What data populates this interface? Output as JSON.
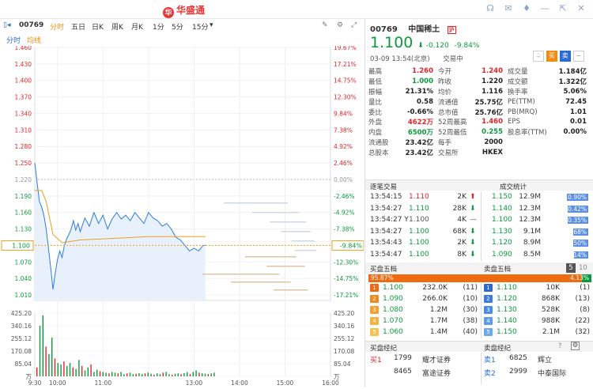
{
  "app": {
    "logo": "华盛通",
    "logo_mark": "华"
  },
  "left": {
    "symbol": "00769",
    "tabs": [
      "分时",
      "五日",
      "日K",
      "周K",
      "月K",
      "1分",
      "5分",
      "15分"
    ],
    "sub_tabs": [
      "分时",
      "均线"
    ]
  },
  "chart_data": {
    "type": "line",
    "title": "",
    "prev_close": 1.22,
    "y_left_ticks": [
      "1.460",
      "1.430",
      "1.400",
      "1.370",
      "1.340",
      "1.310",
      "1.280",
      "1.250",
      "1.220",
      "1.190",
      "1.160",
      "1.130",
      "1.100",
      "1.070",
      "1.040",
      "1.010"
    ],
    "y_right_ticks": [
      "19.67%",
      "17.21%",
      "14.75%",
      "12.30%",
      "9.84%",
      "7.38%",
      "4.92%",
      "2.46%",
      "0.00%",
      "-2.46%",
      "-4.92%",
      "-7.38%",
      "-9.84%",
      "-12.30%",
      "-14.75%",
      "-17.21%"
    ],
    "ylim": [
      1.0,
      1.46
    ],
    "current_label": "1.100",
    "current_pct": "-9.84%",
    "x_ticks": [
      "9:30",
      "10:00",
      "11:00",
      "13:00",
      "14:00",
      "15:00",
      "16:00"
    ],
    "volume_ticks_left": [
      "425.20",
      "340.16",
      "255.12",
      "170.08",
      "85.04",
      "万"
    ],
    "volume_ticks_right": [
      "425.20",
      "340.16",
      "255.12",
      "170.08",
      "85.04",
      "万"
    ],
    "price_series": [
      [
        0,
        1.25
      ],
      [
        1,
        1.215
      ],
      [
        2,
        1.18
      ],
      [
        3,
        1.17
      ],
      [
        4,
        1.155
      ],
      [
        5,
        1.13
      ],
      [
        6,
        1.095
      ],
      [
        7,
        1.06
      ],
      [
        8,
        1.02
      ],
      [
        9,
        1.05
      ],
      [
        10,
        1.075
      ],
      [
        11,
        1.09
      ],
      [
        12,
        1.078
      ],
      [
        13,
        1.1
      ],
      [
        14,
        1.112
      ],
      [
        15,
        1.12
      ],
      [
        16,
        1.13
      ],
      [
        17,
        1.145
      ],
      [
        18,
        1.128
      ],
      [
        19,
        1.14
      ],
      [
        20,
        1.125
      ],
      [
        22,
        1.15
      ],
      [
        24,
        1.135
      ],
      [
        26,
        1.16
      ],
      [
        28,
        1.14
      ],
      [
        30,
        1.155
      ],
      [
        32,
        1.13
      ],
      [
        34,
        1.148
      ],
      [
        36,
        1.16
      ],
      [
        38,
        1.148
      ],
      [
        40,
        1.155
      ],
      [
        42,
        1.145
      ],
      [
        44,
        1.16
      ],
      [
        46,
        1.15
      ],
      [
        48,
        1.14
      ],
      [
        50,
        1.16
      ],
      [
        52,
        1.15
      ],
      [
        54,
        1.145
      ],
      [
        56,
        1.135
      ],
      [
        58,
        1.14
      ],
      [
        60,
        1.13
      ],
      [
        62,
        1.115
      ],
      [
        64,
        1.11
      ],
      [
        66,
        1.1
      ],
      [
        68,
        1.09
      ],
      [
        70,
        1.095
      ],
      [
        72,
        1.09
      ],
      [
        74,
        1.1
      ],
      [
        75,
        1.1
      ]
    ],
    "avg_series": [
      [
        0,
        1.2
      ],
      [
        3,
        1.2
      ],
      [
        5,
        1.18
      ],
      [
        8,
        1.12
      ],
      [
        12,
        1.105
      ],
      [
        20,
        1.11
      ],
      [
        30,
        1.112
      ],
      [
        40,
        1.114
      ],
      [
        50,
        1.116
      ],
      [
        60,
        1.116
      ],
      [
        70,
        1.116
      ],
      [
        75,
        1.116
      ]
    ],
    "volume": [
      60,
      340,
      410,
      200,
      150,
      260,
      120,
      90,
      80,
      100,
      70,
      90,
      60,
      50,
      110,
      70,
      40,
      60,
      80,
      30,
      45,
      35,
      30,
      25,
      20,
      30,
      25,
      20,
      30,
      15,
      20,
      25,
      15,
      18,
      22,
      15,
      20,
      25,
      18,
      12,
      20,
      15,
      25,
      30,
      15,
      12,
      18,
      20,
      15,
      22,
      28,
      15,
      30,
      40,
      25,
      20,
      18,
      15,
      20,
      25
    ]
  },
  "quote": {
    "symbol": "00769",
    "name": "中国稀土",
    "badge": "沪",
    "price": "1.100",
    "change": "-0.120",
    "pct": "-9.84%",
    "time": "03-09  13:54(北京)",
    "status": "交易中",
    "action_buttons": [
      "买",
      "卖"
    ],
    "rows": [
      [
        "最高",
        "1.260",
        "今开",
        "1.240",
        "成交量",
        "1.184亿"
      ],
      [
        "最低",
        "1.000",
        "昨收",
        "1.220",
        "成交额",
        "1.322亿"
      ],
      [
        "振幅",
        "21.31%",
        "均价",
        "1.116",
        "换手率",
        "5.06%"
      ],
      [
        "量比",
        "0.58",
        "流通值",
        "25.75亿",
        "PE(TTM)",
        "72.45"
      ],
      [
        "委比",
        "-0.66%",
        "总市值",
        "25.76亿",
        "PB(MRQ)",
        "1.01"
      ],
      [
        "外盘",
        "4622万",
        "52周最高",
        "1.460",
        "EPS",
        "0.01"
      ],
      [
        "内盘",
        "6500万",
        "52周最低",
        "0.255",
        "股息率(TTM)",
        "0.00%"
      ],
      [
        "流通股",
        "23.42亿",
        "每手",
        "2000",
        "",
        ""
      ],
      [
        "总股本",
        "23.42亿",
        "交易所",
        "HKEX",
        "",
        ""
      ]
    ],
    "row_colors": [
      [
        "red",
        "red",
        ""
      ],
      [
        "green",
        "",
        ""
      ],
      [
        "",
        "",
        ""
      ],
      [
        "",
        "",
        ""
      ],
      [
        "",
        "",
        ""
      ],
      [
        "red",
        "red",
        ""
      ],
      [
        "green",
        "green",
        ""
      ],
      [
        "",
        "",
        ""
      ],
      [
        "",
        "",
        ""
      ]
    ]
  },
  "trades": {
    "header": "逐笔交易",
    "stats_header": "成交统计",
    "rows": [
      [
        "13:54:15",
        "1.110",
        "2K",
        "up"
      ],
      [
        "13:54:27",
        "1.110",
        "28K",
        "down"
      ],
      [
        "13:54:27 Y",
        "1.100",
        "4K",
        "flat"
      ],
      [
        "13:54:27",
        "1.100",
        "68K",
        "down"
      ],
      [
        "13:54:43",
        "1.100",
        "2K",
        "down"
      ],
      [
        "13:54:47",
        "1.100",
        "8K",
        "down"
      ]
    ],
    "stats": [
      [
        "1.150",
        "12.9M",
        "10.90%",
        0.109
      ],
      [
        "1.140",
        "12.3M",
        "10.42%",
        0.1042
      ],
      [
        "1.100",
        "12.3M",
        "10.35%",
        0.1035
      ],
      [
        "1.130",
        "9.1M",
        "7.68%",
        0.0768
      ],
      [
        "1.120",
        "8.9M",
        "7.50%",
        0.075
      ],
      [
        "1.090",
        "8.5M",
        "7.14%",
        0.0714
      ]
    ]
  },
  "orderbook": {
    "buy_header": "买盘五档",
    "sell_header": "卖盘五档",
    "level_buttons": [
      "5",
      "10"
    ],
    "buy_pct": "95.87%",
    "sell_pct": "4.13%",
    "buy_ratio": 0.9587,
    "buy": [
      [
        "1",
        "1.100",
        "232.0K",
        "(11)"
      ],
      [
        "2",
        "1.090",
        "266.0K",
        "(10)"
      ],
      [
        "3",
        "1.080",
        "1.2M",
        "(30)"
      ],
      [
        "4",
        "1.070",
        "1.7M",
        "(38)"
      ],
      [
        "5",
        "1.060",
        "1.4M",
        "(40)"
      ]
    ],
    "sell": [
      [
        "1",
        "1.110",
        "10K",
        "(1)"
      ],
      [
        "2",
        "1.120",
        "868K",
        "(13)"
      ],
      [
        "3",
        "1.130",
        "528K",
        "(8)"
      ],
      [
        "4",
        "1.140",
        "988K",
        "(22)"
      ],
      [
        "5",
        "1.150",
        "2.1M",
        "(32)"
      ]
    ]
  },
  "brokers": {
    "buy_header": "买盘经纪",
    "sell_header": "卖盘经纪",
    "buy": [
      [
        "买1",
        "1799",
        "耀才证券"
      ],
      [
        "",
        "8465",
        "富途证券"
      ]
    ],
    "sell": [
      [
        "卖1",
        "6825",
        "辉立"
      ],
      [
        "卖2",
        "2999",
        "中泰国际"
      ]
    ]
  }
}
